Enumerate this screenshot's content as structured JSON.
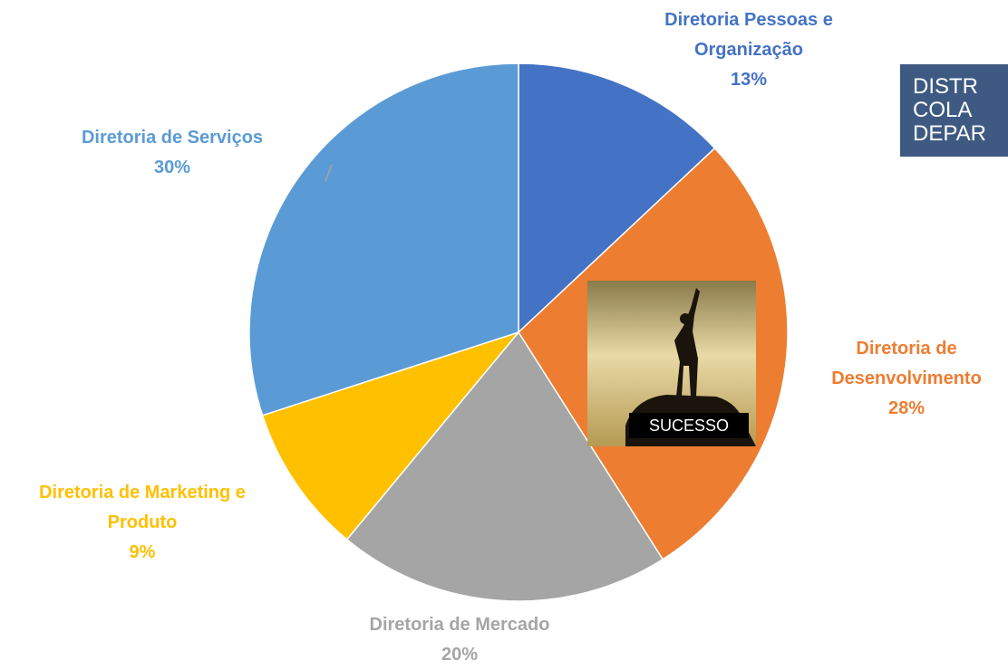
{
  "chart_data": {
    "type": "pie",
    "categories": [
      "Diretoria Pessoas e Organização",
      "Diretoria de Desenvolvimento",
      "Diretoria de Mercado",
      "Diretoria de Marketing e Produto",
      "Diretoria de Serviços"
    ],
    "values": [
      13,
      28,
      20,
      9,
      30
    ],
    "value_labels": [
      "13%",
      "28%",
      "20%",
      "9%",
      "30%"
    ],
    "colors": [
      "#4472c4",
      "#ed7d31",
      "#a5a5a5",
      "#ffc000",
      "#5b9bd5"
    ]
  },
  "text_box": {
    "lines": [
      "DISTR",
      "COLA",
      "DEPAR"
    ]
  },
  "image": {
    "caption": "SUCESSO"
  }
}
